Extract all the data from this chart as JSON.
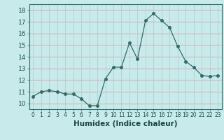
{
  "x": [
    0,
    1,
    2,
    3,
    4,
    5,
    6,
    7,
    8,
    9,
    10,
    11,
    12,
    13,
    14,
    15,
    16,
    17,
    18,
    19,
    20,
    21,
    22,
    23
  ],
  "y": [
    10.6,
    11.0,
    11.1,
    11.0,
    10.8,
    10.8,
    10.4,
    9.8,
    9.8,
    12.1,
    13.1,
    13.1,
    15.2,
    13.8,
    17.1,
    17.7,
    17.1,
    16.5,
    14.9,
    13.6,
    13.1,
    12.4,
    12.3,
    12.4
  ],
  "xlabel": "Humidex (Indice chaleur)",
  "xlim": [
    -0.5,
    23.5
  ],
  "ylim": [
    9.5,
    18.5
  ],
  "yticks": [
    10,
    11,
    12,
    13,
    14,
    15,
    16,
    17,
    18
  ],
  "xticks": [
    0,
    1,
    2,
    3,
    4,
    5,
    6,
    7,
    8,
    9,
    10,
    11,
    12,
    13,
    14,
    15,
    16,
    17,
    18,
    19,
    20,
    21,
    22,
    23
  ],
  "line_color": "#2e6b6b",
  "marker_size": 2.5,
  "bg_color": "#c8eaea",
  "hgrid_color": "#d9a0a0",
  "vgrid_color": "#b0d0d0",
  "xlabel_fontsize": 7.5,
  "tick_fontsize": 5.5,
  "ytick_fontsize": 6.5
}
